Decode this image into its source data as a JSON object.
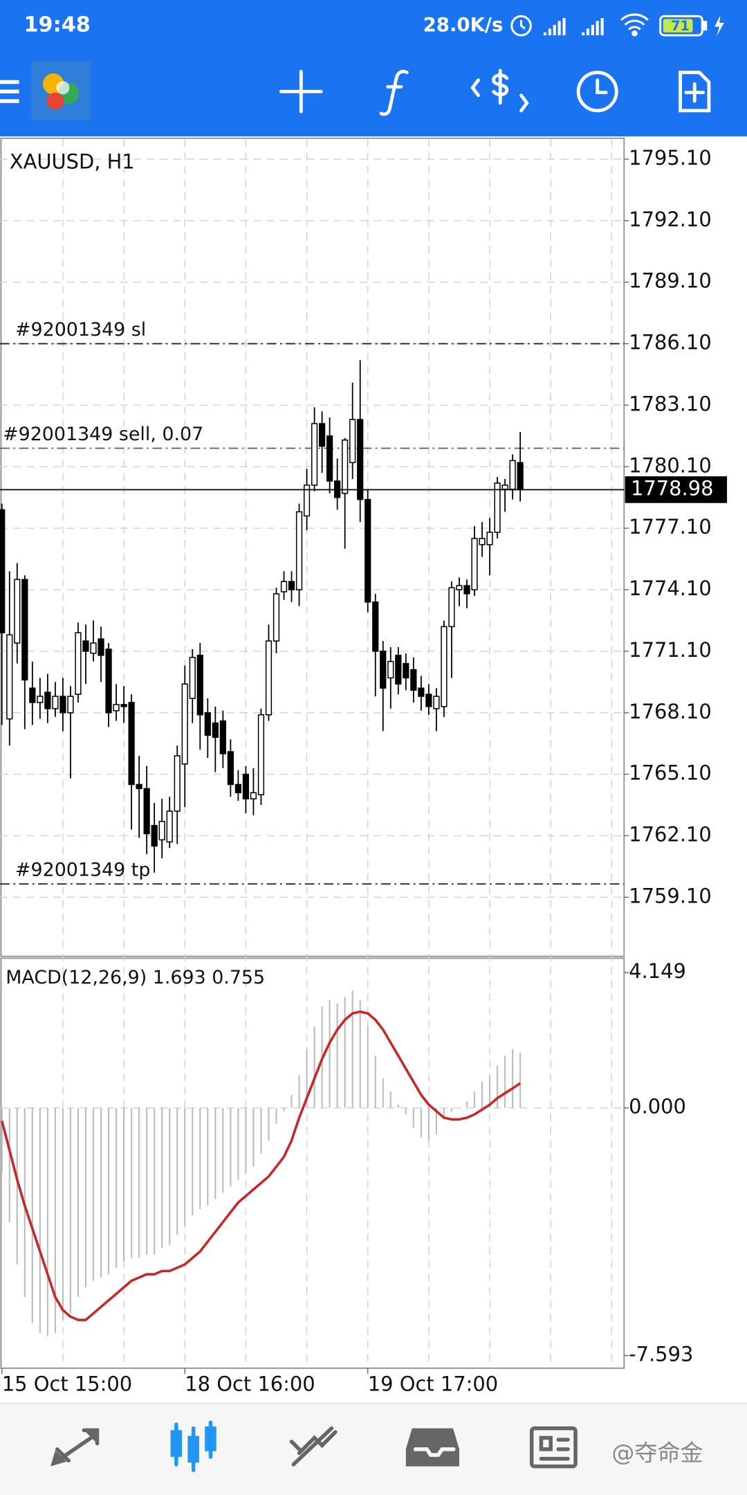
{
  "status_bar": {
    "time": "19:48",
    "speed": "28.0K/s",
    "battery": "71"
  },
  "watermark": "@夺命金",
  "chart_data": [
    {
      "type": "candlestick",
      "title": "XAUUSD, H1",
      "categories": [
        "15 Oct 15:00",
        null,
        null,
        null,
        null,
        null,
        null,
        null,
        null,
        null,
        null,
        null,
        null,
        null,
        null,
        null,
        null,
        null,
        null,
        null,
        null,
        null,
        null,
        null,
        "18 Oct 16:00",
        null,
        null,
        null,
        null,
        null,
        null,
        null,
        null,
        null,
        null,
        null,
        null,
        null,
        null,
        null,
        null,
        null,
        null,
        null,
        null,
        null,
        null,
        null,
        "19 Oct 17:00",
        null,
        null,
        null,
        null,
        null,
        null,
        null,
        null,
        null,
        null,
        null,
        null,
        null,
        null,
        null,
        null,
        null,
        null,
        null,
        null
      ],
      "open": [
        1778.0,
        1767.8,
        1771.5,
        1774.6,
        1769.3,
        1768.6,
        1769.1,
        1768.3,
        1768.9,
        1768.1,
        1769.0,
        1771.6,
        1771.0,
        1771.7,
        1771.2,
        1768.2,
        1768.5,
        1768.6,
        1764.6,
        1764.4,
        1762.6,
        1761.9,
        1761.8,
        1763.3,
        1765.6,
        1768.8,
        1770.9,
        1768.1,
        1767.6,
        1767.7,
        1766.2,
        1764.6,
        1765.1,
        1763.9,
        1764.1,
        1768.0,
        1771.6,
        1774.0,
        1774.5,
        1774.1,
        1777.7,
        1779.2,
        1782.2,
        1781.6,
        1779.4,
        1778.8,
        1780.3,
        1782.4,
        1778.5,
        1773.5,
        1771.1,
        1769.8,
        1770.9,
        1770.5,
        1770.2,
        1769.3,
        1769.0,
        1768.3,
        1768.4,
        1772.3,
        1774.1,
        1774.3,
        1774.1,
        1776.3,
        1776.3,
        1776.9,
        1779.0,
        1779.0,
        1780.3
      ],
      "high": [
        1778.3,
        1775.0,
        1775.4,
        1774.8,
        1770.6,
        1769.8,
        1770.0,
        1769.6,
        1769.8,
        1769.4,
        1772.5,
        1772.4,
        1772.6,
        1772.3,
        1771.5,
        1769.5,
        1769.4,
        1769.0,
        1766.0,
        1765.5,
        1763.7,
        1763.9,
        1764.0,
        1766.5,
        1770.4,
        1771.2,
        1771.5,
        1768.8,
        1768.4,
        1768.2,
        1766.8,
        1765.3,
        1765.5,
        1765.4,
        1768.3,
        1772.4,
        1774.2,
        1775.0,
        1775.0,
        1778.3,
        1780.0,
        1783.0,
        1782.8,
        1782.5,
        1780.5,
        1781.5,
        1784.2,
        1785.3,
        1779.0,
        1773.9,
        1771.6,
        1771.3,
        1771.3,
        1771.0,
        1770.8,
        1769.9,
        1769.5,
        1769.3,
        1772.6,
        1774.5,
        1774.7,
        1774.6,
        1777.2,
        1777.4,
        1777.6,
        1779.6,
        1779.5,
        1780.7,
        1781.8
      ],
      "low": [
        1767.5,
        1766.5,
        1770.5,
        1767.3,
        1767.5,
        1767.8,
        1767.6,
        1767.9,
        1767.2,
        1764.9,
        1768.6,
        1769.5,
        1770.6,
        1769.6,
        1767.4,
        1767.7,
        1767.6,
        1762.4,
        1762.0,
        1761.2,
        1760.3,
        1761.0,
        1761.5,
        1761.7,
        1763.5,
        1767.6,
        1766.3,
        1765.9,
        1765.2,
        1765.4,
        1764.0,
        1763.8,
        1763.2,
        1763.1,
        1763.6,
        1767.7,
        1771.0,
        1773.6,
        1773.5,
        1773.3,
        1777.0,
        1778.9,
        1779.8,
        1778.8,
        1778.0,
        1776.1,
        1779.5,
        1777.4,
        1773.0,
        1768.9,
        1767.2,
        1768.3,
        1769.0,
        1769.2,
        1768.6,
        1768.2,
        1768.0,
        1767.2,
        1767.9,
        1769.8,
        1773.3,
        1773.2,
        1773.8,
        1775.7,
        1774.8,
        1776.6,
        1777.9,
        1778.5,
        1778.4
      ],
      "close": [
        1772.0,
        1771.9,
        1774.6,
        1769.7,
        1768.6,
        1768.9,
        1768.3,
        1768.9,
        1768.1,
        1768.9,
        1772.0,
        1771.1,
        1771.5,
        1770.9,
        1768.1,
        1768.5,
        1768.4,
        1764.6,
        1764.4,
        1762.2,
        1761.6,
        1762.8,
        1763.3,
        1766.0,
        1769.5,
        1770.8,
        1768.0,
        1767.0,
        1766.9,
        1766.1,
        1764.6,
        1764.2,
        1763.9,
        1764.2,
        1768.0,
        1771.6,
        1773.9,
        1774.5,
        1774.1,
        1777.9,
        1779.2,
        1782.2,
        1781.1,
        1779.4,
        1778.6,
        1781.4,
        1782.4,
        1778.5,
        1773.5,
        1771.1,
        1769.3,
        1770.6,
        1769.5,
        1769.8,
        1769.2,
        1768.9,
        1768.4,
        1768.9,
        1772.3,
        1774.2,
        1774.3,
        1773.9,
        1776.6,
        1776.6,
        1776.9,
        1779.3,
        1779.2,
        1780.4,
        1778.98
      ],
      "current_price": 1778.98,
      "annotations": [
        {
          "text": "#92001349 sl",
          "value": 1786.1,
          "color": "#222222"
        },
        {
          "text": "#92001349 sell, 0.07",
          "value": 1781.0,
          "color": "#2e7d32"
        },
        {
          "text": "#92001349 tp",
          "value": 1759.75,
          "color": "#222222"
        }
      ],
      "ylim": [
        1756.22,
        1796.12
      ],
      "yticks": [
        {
          "value": 1795.1,
          "label": "1795.10"
        },
        {
          "value": 1792.1,
          "label": "1792.10"
        },
        {
          "value": 1789.1,
          "label": "1789.10"
        },
        {
          "value": 1786.1,
          "label": "1786.10"
        },
        {
          "value": 1783.1,
          "label": "1783.10"
        },
        {
          "value": 1780.1,
          "label": "1780.10"
        },
        {
          "value": 1777.1,
          "label": "1777.10"
        },
        {
          "value": 1774.1,
          "label": "1774.10"
        },
        {
          "value": 1771.1,
          "label": "1771.10"
        },
        {
          "value": 1768.1,
          "label": "1768.10"
        },
        {
          "value": 1765.1,
          "label": "1765.10"
        },
        {
          "value": 1762.1,
          "label": "1762.10"
        },
        {
          "value": 1759.1,
          "label": "1759.10"
        }
      ],
      "grid": true
    },
    {
      "type": "macd",
      "title": "MACD(12,26,9) 1.693 0.755",
      "series": [
        {
          "style": "histogram",
          "color": "#bdbdbd",
          "values": [
            -2.0,
            -3.5,
            -4.8,
            -5.8,
            -6.6,
            -6.9,
            -7.0,
            -6.9,
            -6.5,
            -6.3,
            -5.8,
            -5.5,
            -5.3,
            -5.2,
            -5.1,
            -4.9,
            -4.7,
            -4.6,
            -4.6,
            -4.5,
            -4.5,
            -4.3,
            -4.2,
            -3.9,
            -3.6,
            -3.3,
            -3.1,
            -3.0,
            -2.8,
            -2.6,
            -2.4,
            -2.2,
            -2.0,
            -1.8,
            -1.4,
            -1.0,
            -0.5,
            -0.1,
            0.4,
            1.0,
            1.8,
            2.5,
            3.1,
            3.3,
            3.2,
            3.4,
            3.6,
            3.3,
            2.5,
            1.6,
            0.9,
            0.5,
            0.1,
            -0.2,
            -0.6,
            -0.9,
            -1.0,
            -0.8,
            -0.3,
            -0.1,
            0.0,
            0.2,
            0.5,
            0.8,
            1.0,
            1.3,
            1.6,
            1.8,
            1.693
          ]
        },
        {
          "style": "line",
          "color": "#c62828",
          "values": [
            -0.4,
            -1.3,
            -2.2,
            -3.0,
            -3.7,
            -4.4,
            -5.1,
            -5.8,
            -6.2,
            -6.4,
            -6.5,
            -6.5,
            -6.3,
            -6.1,
            -5.9,
            -5.7,
            -5.5,
            -5.3,
            -5.2,
            -5.1,
            -5.1,
            -5.0,
            -5.0,
            -4.9,
            -4.8,
            -4.6,
            -4.4,
            -4.1,
            -3.8,
            -3.5,
            -3.2,
            -2.9,
            -2.7,
            -2.5,
            -2.3,
            -2.1,
            -1.8,
            -1.5,
            -1.0,
            -0.3,
            0.3,
            0.9,
            1.5,
            2.0,
            2.4,
            2.7,
            2.9,
            2.95,
            2.9,
            2.7,
            2.4,
            2.0,
            1.6,
            1.2,
            0.8,
            0.4,
            0.1,
            -0.1,
            -0.3,
            -0.35,
            -0.35,
            -0.3,
            -0.2,
            -0.05,
            0.1,
            0.3,
            0.45,
            0.6,
            0.755
          ]
        }
      ],
      "ylim": [
        -7.98,
        4.59
      ],
      "yticks": [
        4.149,
        {
          "value": 0,
          "label": "0.000"
        },
        -7.593
      ],
      "zero_line": true
    }
  ]
}
